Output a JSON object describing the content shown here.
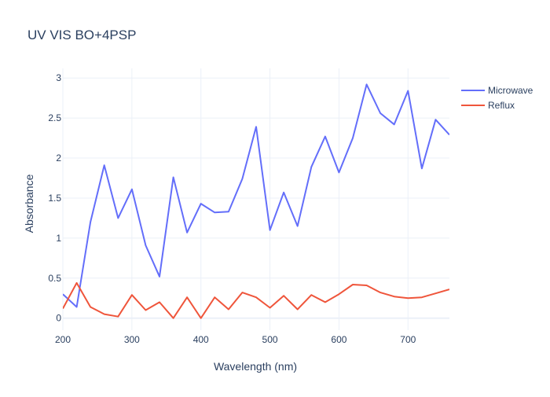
{
  "chart_data": {
    "type": "line",
    "title": "UV VIS BO+4PSP",
    "xlabel": "Wavelength (nm)",
    "ylabel": "Absorbance",
    "xlim": [
      200,
      760
    ],
    "ylim": [
      -0.15,
      3.12
    ],
    "xticks": [
      200,
      300,
      400,
      500,
      600,
      700
    ],
    "xtick_labels": [
      "200",
      "300",
      "400",
      "500",
      "600",
      "700"
    ],
    "yticks": [
      0,
      0.5,
      1,
      1.5,
      2,
      2.5,
      3
    ],
    "ytick_labels": [
      "0",
      "0.5",
      "1",
      "1.5",
      "2",
      "2.5",
      "3"
    ],
    "grid": true,
    "legend_position": "top-right",
    "x": [
      200,
      220,
      240,
      260,
      280,
      300,
      320,
      340,
      360,
      380,
      400,
      420,
      440,
      460,
      480,
      500,
      520,
      540,
      560,
      580,
      600,
      620,
      640,
      660,
      680,
      700,
      720,
      740,
      760
    ],
    "series": [
      {
        "name": "Microwave",
        "color": "#636efa",
        "values": [
          0.3,
          0.14,
          1.2,
          1.91,
          1.25,
          1.61,
          0.91,
          0.52,
          1.76,
          1.07,
          1.43,
          1.32,
          1.33,
          1.74,
          2.39,
          1.1,
          1.57,
          1.15,
          1.89,
          2.27,
          1.82,
          2.25,
          2.92,
          2.56,
          2.42,
          2.84,
          1.87,
          2.48,
          2.29
        ]
      },
      {
        "name": "Reflux",
        "color": "#ef553b",
        "values": [
          0.12,
          0.44,
          0.14,
          0.05,
          0.02,
          0.29,
          0.1,
          0.2,
          0.0,
          0.26,
          0.0,
          0.26,
          0.11,
          0.32,
          0.26,
          0.13,
          0.28,
          0.11,
          0.29,
          0.2,
          0.3,
          0.42,
          0.41,
          0.32,
          0.27,
          0.25,
          0.26,
          0.31,
          0.36
        ]
      }
    ]
  }
}
